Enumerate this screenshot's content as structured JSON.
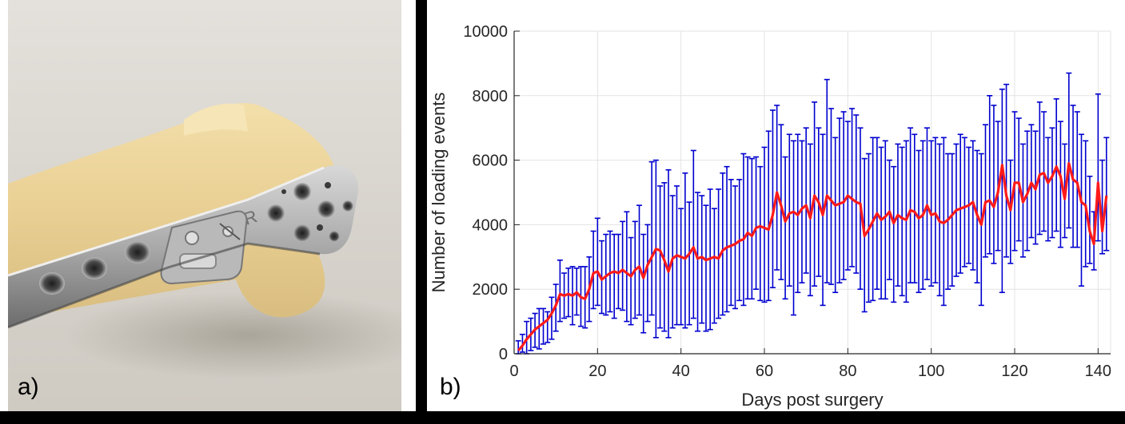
{
  "panels": {
    "a": {
      "label": "a)"
    },
    "b": {
      "label": "b)"
    }
  },
  "photo": {
    "subject": "bone-plate-implant-photo",
    "plate_letter": "R"
  },
  "colors": {
    "errorbar": "#0000d0",
    "mean_line": "#ff1a1a",
    "grid": "#e3e3e3",
    "axis": "#262626"
  },
  "chart_data": {
    "type": "line",
    "xlabel": "Days post surgery",
    "ylabel": "Number of loading events",
    "xlim": [
      0,
      143
    ],
    "ylim": [
      0,
      10000
    ],
    "xticks": [
      0,
      20,
      40,
      60,
      80,
      100,
      120,
      140
    ],
    "yticks": [
      0,
      2000,
      4000,
      6000,
      8000,
      10000
    ],
    "grid": true,
    "legend": "none",
    "series": [
      {
        "kind": "line",
        "color": "#ff1a1a",
        "x": [
          1,
          2,
          3,
          4,
          5,
          6,
          7,
          8,
          9,
          10,
          11,
          12,
          13,
          14,
          15,
          16,
          17,
          18,
          19,
          20,
          21,
          22,
          23,
          24,
          25,
          26,
          27,
          28,
          29,
          30,
          31,
          32,
          33,
          34,
          35,
          36,
          37,
          38,
          39,
          40,
          41,
          42,
          43,
          44,
          45,
          46,
          47,
          48,
          49,
          50,
          51,
          52,
          53,
          54,
          55,
          56,
          57,
          58,
          59,
          60,
          61,
          62,
          63,
          64,
          65,
          66,
          67,
          68,
          69,
          70,
          71,
          72,
          73,
          74,
          75,
          76,
          77,
          78,
          79,
          80,
          81,
          82,
          83,
          84,
          85,
          86,
          87,
          88,
          89,
          90,
          91,
          92,
          93,
          94,
          95,
          96,
          97,
          98,
          99,
          100,
          101,
          102,
          103,
          104,
          105,
          106,
          107,
          108,
          109,
          110,
          111,
          112,
          113,
          114,
          115,
          116,
          117,
          118,
          119,
          120,
          121,
          122,
          123,
          124,
          125,
          126,
          127,
          128,
          129,
          130,
          131,
          132,
          133,
          134,
          135,
          136,
          137,
          138,
          139,
          140,
          141,
          142
        ],
        "y": [
          100,
          250,
          450,
          600,
          750,
          850,
          950,
          1050,
          1250,
          1500,
          1850,
          1800,
          1850,
          1800,
          1900,
          1750,
          1700,
          2000,
          2500,
          2550,
          2300,
          2400,
          2500,
          2550,
          2500,
          2600,
          2500,
          2400,
          2600,
          2700,
          2350,
          2750,
          3000,
          3250,
          3200,
          2900,
          2550,
          2950,
          3050,
          3000,
          2950,
          3100,
          3300,
          2950,
          3000,
          2900,
          2950,
          3000,
          2950,
          3200,
          3300,
          3350,
          3400,
          3500,
          3550,
          3750,
          3650,
          3900,
          3950,
          3900,
          3850,
          4300,
          5000,
          4600,
          4100,
          4350,
          4400,
          4300,
          4500,
          4600,
          4200,
          4900,
          4700,
          4300,
          4900,
          4750,
          4600,
          4650,
          4700,
          4900,
          4800,
          4700,
          4650,
          3650,
          3850,
          4100,
          4350,
          4150,
          4250,
          4400,
          4050,
          4300,
          4200,
          4150,
          4450,
          4400,
          4200,
          4300,
          4600,
          4300,
          4350,
          4100,
          4050,
          4150,
          4300,
          4450,
          4500,
          4550,
          4600,
          4700,
          4300,
          4000,
          4700,
          4750,
          4550,
          5000,
          5850,
          4900,
          4450,
          5300,
          5300,
          4700,
          4950,
          5300,
          5100,
          5550,
          5600,
          5300,
          5500,
          5800,
          5500,
          4800,
          5900,
          5400,
          5300,
          4700,
          4600,
          3800,
          3400,
          5300,
          3800,
          4900
        ]
      },
      {
        "kind": "errorbar",
        "color": "#0000d0",
        "x": [
          1,
          2,
          3,
          4,
          5,
          6,
          7,
          8,
          9,
          10,
          11,
          12,
          13,
          14,
          15,
          16,
          17,
          18,
          19,
          20,
          21,
          22,
          23,
          24,
          25,
          26,
          27,
          28,
          29,
          30,
          31,
          32,
          33,
          34,
          35,
          36,
          37,
          38,
          39,
          40,
          41,
          42,
          43,
          44,
          45,
          46,
          47,
          48,
          49,
          50,
          51,
          52,
          53,
          54,
          55,
          56,
          57,
          58,
          59,
          60,
          61,
          62,
          63,
          64,
          65,
          66,
          67,
          68,
          69,
          70,
          71,
          72,
          73,
          74,
          75,
          76,
          77,
          78,
          79,
          80,
          81,
          82,
          83,
          84,
          85,
          86,
          87,
          88,
          89,
          90,
          91,
          92,
          93,
          94,
          95,
          96,
          97,
          98,
          99,
          100,
          101,
          102,
          103,
          104,
          105,
          106,
          107,
          108,
          109,
          110,
          111,
          112,
          113,
          114,
          115,
          116,
          117,
          118,
          119,
          120,
          121,
          122,
          123,
          124,
          125,
          126,
          127,
          128,
          129,
          130,
          131,
          132,
          133,
          134,
          135,
          136,
          137,
          138,
          139,
          140,
          141,
          142
        ],
        "lower": [
          0,
          50,
          0,
          100,
          200,
          150,
          300,
          350,
          450,
          700,
          1000,
          1100,
          1150,
          900,
          1200,
          850,
          800,
          1000,
          1400,
          1500,
          1250,
          1200,
          1300,
          1100,
          1400,
          1350,
          1000,
          900,
          1100,
          1200,
          650,
          1000,
          1200,
          500,
          800,
          700,
          500,
          800,
          900,
          900,
          800,
          900,
          1100,
          700,
          950,
          700,
          750,
          950,
          1100,
          1200,
          1300,
          1500,
          1400,
          1650,
          1500,
          1700,
          1700,
          2000,
          1650,
          1600,
          1650,
          2050,
          2600,
          2300,
          1700,
          2100,
          1200,
          1900,
          2200,
          2500,
          1800,
          2100,
          2400,
          1500,
          2200,
          2150,
          1900,
          2200,
          2300,
          2600,
          2700,
          2500,
          2000,
          1300,
          1600,
          1650,
          2000,
          1700,
          1700,
          2300,
          1600,
          2100,
          1800,
          1600,
          2200,
          2200,
          1900,
          2000,
          2300,
          2100,
          2200,
          1800,
          1500,
          2000,
          2100,
          2400,
          2500,
          2700,
          2800,
          2600,
          2200,
          1500,
          3000,
          3100,
          2800,
          3200,
          1900,
          3000,
          2800,
          3200,
          3500,
          3000,
          3200,
          3600,
          3400,
          3700,
          3800,
          3500,
          3600,
          3800,
          3300,
          3600,
          3900,
          3300,
          3300,
          2100,
          2700,
          2800,
          2600,
          3500,
          3100,
          3200
        ],
        "upper": [
          400,
          600,
          1000,
          1100,
          1250,
          1400,
          1400,
          1300,
          1750,
          2150,
          2900,
          2500,
          2650,
          2700,
          2650,
          2700,
          2700,
          3000,
          3800,
          4200,
          3500,
          3700,
          3800,
          3700,
          3700,
          4100,
          4400,
          3600,
          4100,
          4600,
          3700,
          4000,
          5950,
          6000,
          5200,
          5300,
          5700,
          4900,
          5200,
          4500,
          5600,
          4700,
          6300,
          5000,
          4900,
          4600,
          5100,
          4500,
          5100,
          5600,
          5800,
          5400,
          5200,
          5400,
          6200,
          6100,
          6050,
          6100,
          5800,
          6400,
          6900,
          7550,
          7700,
          7100,
          6100,
          6800,
          6600,
          6800,
          6600,
          7000,
          6500,
          7800,
          7000,
          6800,
          8500,
          7600,
          6700,
          7300,
          7500,
          7200,
          7600,
          7400,
          7000,
          6050,
          6200,
          6700,
          6700,
          6400,
          6600,
          6000,
          5800,
          6500,
          6400,
          6600,
          7000,
          6800,
          6300,
          6600,
          7000,
          6600,
          6700,
          6500,
          6700,
          6200,
          6200,
          6500,
          6800,
          6700,
          6400,
          6600,
          6300,
          6200,
          7100,
          8000,
          7700,
          7200,
          8200,
          8350,
          6000,
          7500,
          7300,
          6500,
          6900,
          7100,
          6900,
          7800,
          7500,
          6700,
          7000,
          7900,
          7200,
          6500,
          8700,
          7700,
          7500,
          6800,
          6600,
          5500,
          4400,
          8050,
          6000,
          6700
        ]
      }
    ]
  }
}
